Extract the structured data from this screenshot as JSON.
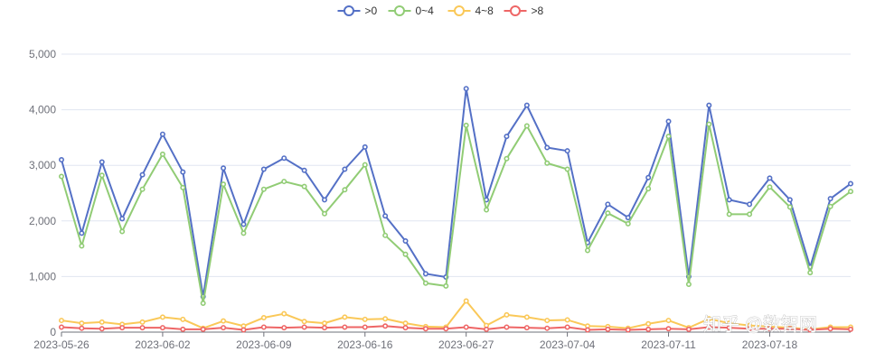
{
  "chart_data": {
    "type": "line",
    "title": "",
    "xlabel": "",
    "ylabel": "",
    "ylim": [
      0,
      5000
    ],
    "yticks": [
      "0",
      "1,000",
      "2,000",
      "3,000",
      "4,000",
      "5,000"
    ],
    "grid": "horizontal",
    "legend_position": "top-center",
    "x_tick_labels": [
      "2023-05-26",
      "2023-06-02",
      "2023-06-09",
      "2023-06-16",
      "2023-06-27",
      "2023-07-04",
      "2023-07-11",
      "2023-07-18"
    ],
    "x_tick_indices": [
      0,
      5,
      10,
      15,
      20,
      25,
      30,
      35
    ],
    "point_count": 40,
    "series": [
      {
        "name": ">0",
        "color": "#5470c6",
        "values": [
          3100,
          1780,
          3060,
          2040,
          2830,
          3560,
          2880,
          640,
          2950,
          1940,
          2930,
          3130,
          2910,
          2380,
          2930,
          3330,
          2090,
          1640,
          1050,
          990,
          4380,
          2380,
          3520,
          4080,
          3320,
          3260,
          1610,
          2300,
          2060,
          2780,
          3790,
          1000,
          4080,
          2380,
          2300,
          2770,
          2380,
          1170,
          2400,
          2670
        ]
      },
      {
        "name": "0~4",
        "color": "#91cc75",
        "values": [
          2800,
          1550,
          2820,
          1810,
          2570,
          3200,
          2600,
          520,
          2660,
          1780,
          2570,
          2710,
          2620,
          2130,
          2560,
          3010,
          1740,
          1400,
          880,
          830,
          3720,
          2200,
          3120,
          3710,
          3040,
          2930,
          1470,
          2140,
          1950,
          2580,
          3520,
          860,
          3740,
          2120,
          2120,
          2610,
          2250,
          1070,
          2260,
          2530
        ]
      },
      {
        "name": "4~8",
        "color": "#fac858",
        "values": [
          210,
          160,
          180,
          140,
          180,
          270,
          230,
          70,
          200,
          110,
          260,
          330,
          190,
          160,
          270,
          230,
          240,
          160,
          100,
          90,
          560,
          120,
          310,
          270,
          210,
          220,
          110,
          100,
          70,
          150,
          210,
          80,
          240,
          160,
          120,
          100,
          80,
          50,
          90,
          90
        ]
      },
      {
        "name": ">8",
        "color": "#ee6666",
        "values": [
          90,
          70,
          60,
          80,
          80,
          80,
          50,
          50,
          80,
          40,
          90,
          80,
          90,
          80,
          90,
          90,
          110,
          80,
          60,
          60,
          90,
          50,
          90,
          80,
          70,
          90,
          40,
          50,
          40,
          50,
          60,
          50,
          90,
          80,
          60,
          60,
          60,
          40,
          60,
          50
        ]
      }
    ]
  },
  "watermark": {
    "text": "知乎 @数智网"
  }
}
